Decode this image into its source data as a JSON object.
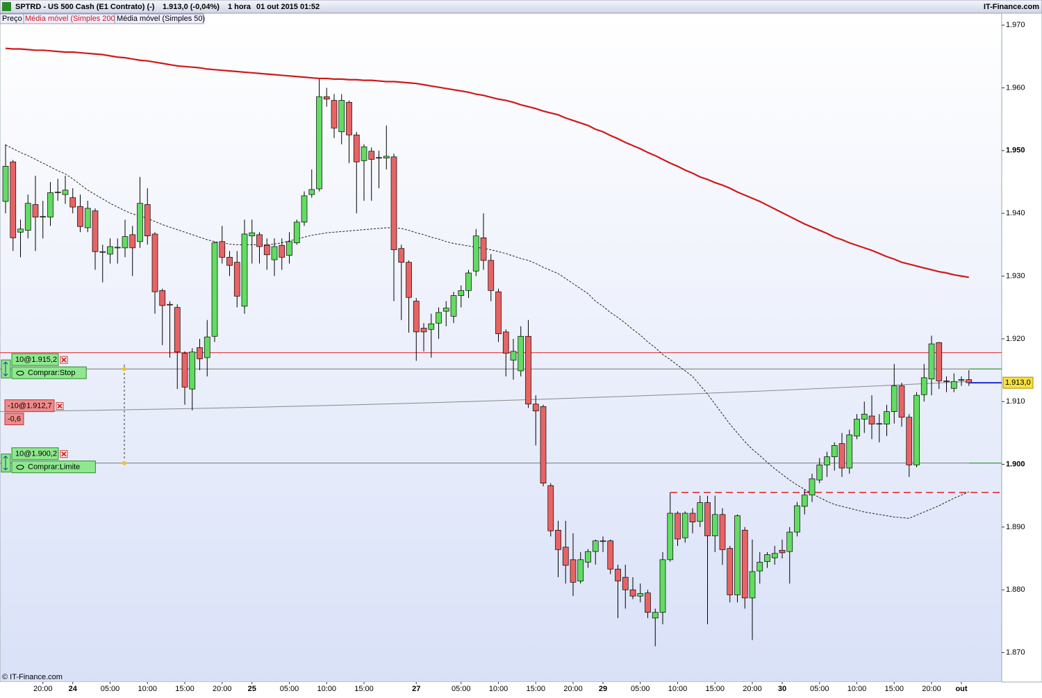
{
  "chart_data": {
    "type": "candlestick",
    "symbol": "SPTRD - US 500 Cash (E1 Contrato) (-)",
    "quote": "1.913,0 (-0,04%)",
    "period": "1 hora",
    "datetime": "01 out 2015 01:52",
    "source": "IT-Finance.com",
    "copyright": "© IT-Finance.com",
    "price_name": "Preço",
    "up_color": "#62dc62",
    "down_color": "#e86464",
    "categories": [
      null,
      null,
      null,
      null,
      null,
      "20:00",
      null,
      null,
      null,
      "24",
      null,
      null,
      null,
      null,
      "05:00",
      null,
      null,
      null,
      null,
      "10:00",
      null,
      null,
      null,
      null,
      "15:00",
      null,
      null,
      null,
      null,
      "20:00",
      null,
      null,
      null,
      "25",
      null,
      null,
      null,
      null,
      "05:00",
      null,
      null,
      null,
      null,
      "10:00",
      null,
      null,
      null,
      null,
      "15:00",
      null,
      null,
      null,
      null,
      null,
      null,
      "27",
      null,
      null,
      null,
      null,
      null,
      "05:00",
      null,
      null,
      null,
      null,
      "10:00",
      null,
      null,
      null,
      null,
      "15:00",
      null,
      null,
      null,
      null,
      "20:00",
      null,
      null,
      null,
      "29",
      null,
      null,
      null,
      null,
      "05:00",
      null,
      null,
      null,
      null,
      "10:00",
      null,
      null,
      null,
      null,
      "15:00",
      null,
      null,
      null,
      null,
      "20:00",
      null,
      null,
      null,
      "30",
      null,
      null,
      null,
      null,
      "05:00",
      null,
      null,
      null,
      null,
      "10:00",
      null,
      null,
      null,
      null,
      "15:00",
      null,
      null,
      null,
      null,
      "20:00",
      null,
      null,
      null,
      "out",
      null
    ],
    "open": [
      1941.9,
      1948.2,
      1937.0,
      1937.3,
      1941.4,
      1939.4,
      1939.4,
      1943.3,
      1943.0,
      1942.5,
      1941.1,
      1937.7,
      1940.4,
      1933.8,
      1933.5,
      1934.5,
      1934.5,
      1936.6,
      1935.5,
      1941.4,
      1936.7,
      1927.7,
      1925.5,
      1925.0,
      1917.7,
      1912.0,
      1918.6,
      1917.0,
      1920.4,
      1935.5,
      1933.0,
      1932.2,
      1925.2,
      1936.4,
      1936.6,
      1934.9,
      1932.6,
      1934.9,
      1933.3,
      1935.3,
      1938.6,
      1943.0,
      1943.9,
      1958.6,
      1958.0,
      1953.0,
      1957.7,
      1952.5,
      1948.4,
      1949.9,
      1948.9,
      1948.8,
      1949.0,
      1934.4,
      1932.2,
      1926.0,
      1921.7,
      1921.5,
      1922.5,
      1924.4,
      1923.6,
      1926.9,
      1927.7,
      1930.8,
      1936.1,
      1932.5,
      1927.5,
      1921.1,
      1916.6,
      1914.9,
      1920.4,
      1909.6,
      1909.2,
      1896.6,
      1889.5,
      1886.8,
      1884.8,
      1881.4,
      1884.4,
      1886.1,
      1887.8,
      1887.8,
      1883.3,
      1882.0,
      1880.0,
      1879.0,
      1879.5,
      1875.5,
      1876.4,
      1884.8,
      1892.2,
      1888.3,
      1892.2,
      1890.9,
      1893.9,
      1888.6,
      1892.0,
      1886.6,
      1879.2,
      1889.5,
      1878.7,
      1883.0,
      1884.5,
      1885.1,
      1886.3,
      1886.1,
      1889.2,
      1893.3,
      1895.1,
      1897.5,
      1899.9,
      1901.2,
      1903.3,
      1899.4,
      1904.5,
      1907.2,
      1907.7,
      1906.4,
      1906.4,
      1908.4,
      1912.5,
      1907.5,
      1899.9,
      1911.1,
      1913.6,
      1919.4,
      1913.3,
      1912.1,
      1913.4,
      1913.5
    ],
    "high": [
      1951.0,
      1948.5,
      1939.0,
      1943.0,
      1946.0,
      1942.0,
      1945.0,
      1945.5,
      1946.0,
      1944.0,
      1943.0,
      1942.0,
      1940.8,
      1935.0,
      1936.0,
      1936.0,
      1939.0,
      1938.0,
      1945.8,
      1944.0,
      1937.0,
      1928.0,
      1926.0,
      1925.5,
      1918.0,
      1918.5,
      1920.0,
      1923.0,
      1935.5,
      1938.0,
      1934.0,
      1934.0,
      1939.0,
      1939.0,
      1937.0,
      1936.0,
      1936.0,
      1936.0,
      1937.0,
      1939.0,
      1943.5,
      1947.0,
      1961.4,
      1960.0,
      1959.0,
      1959.0,
      1958.0,
      1953.0,
      1951.0,
      1950.5,
      1950.0,
      1954.0,
      1949.5,
      1935.0,
      1932.5,
      1926.5,
      1922.5,
      1924.0,
      1925.0,
      1926.0,
      1927.5,
      1928.5,
      1931.0,
      1937.5,
      1940.0,
      1933.5,
      1928.0,
      1921.5,
      1920.0,
      1922.0,
      1923.0,
      1911.0,
      1909.5,
      1897.0,
      1891.0,
      1891.0,
      1889.0,
      1886.0,
      1886.5,
      1888.0,
      1888.5,
      1888.0,
      1884.0,
      1884.0,
      1882.0,
      1881.0,
      1880.0,
      1877.0,
      1886.0,
      1895.5,
      1892.5,
      1892.5,
      1893.0,
      1895.0,
      1895.0,
      1895.0,
      1893.0,
      1887.0,
      1892.0,
      1890.0,
      1888.0,
      1886.0,
      1886.0,
      1887.0,
      1888.0,
      1890.0,
      1894.0,
      1896.0,
      1898.5,
      1901.0,
      1902.0,
      1903.5,
      1905.0,
      1905.5,
      1908.0,
      1910.0,
      1911.0,
      1908.0,
      1909.5,
      1916.0,
      1913.0,
      1908.0,
      1911.5,
      1916.0,
      1920.5,
      1919.5,
      1914.0,
      1914.5,
      1914.0,
      1915.0
    ],
    "low": [
      1940.0,
      1934.0,
      1933.0,
      1936.0,
      1934.0,
      1936.0,
      1938.0,
      1942.0,
      1941.5,
      1940.0,
      1937.0,
      1937.0,
      1931.0,
      1929.0,
      1932.0,
      1932.0,
      1933.0,
      1930.0,
      1934.5,
      1935.0,
      1924.0,
      1919.0,
      1917.0,
      1912.0,
      1909.5,
      1908.6,
      1915.0,
      1914.0,
      1919.5,
      1932.0,
      1930.0,
      1925.0,
      1924.0,
      1932.0,
      1932.0,
      1931.0,
      1930.0,
      1931.0,
      1932.0,
      1935.0,
      1938.0,
      1942.5,
      1943.5,
      1957.0,
      1952.0,
      1951.0,
      1948.0,
      1940.0,
      1942.0,
      1942.0,
      1944.0,
      1947.0,
      1926.0,
      1923.0,
      1921.0,
      1916.5,
      1918.0,
      1917.0,
      1920.0,
      1922.0,
      1922.5,
      1925.0,
      1926.5,
      1930.0,
      1931.0,
      1926.0,
      1919.5,
      1914.0,
      1913.5,
      1914.0,
      1909.0,
      1903.0,
      1896.5,
      1888.5,
      1882.0,
      1881.0,
      1879.0,
      1881.0,
      1883.5,
      1884.0,
      1886.0,
      1882.5,
      1875.5,
      1877.0,
      1878.5,
      1878.0,
      1875.5,
      1871.0,
      1874.5,
      1884.5,
      1887.0,
      1887.5,
      1889.0,
      1890.0,
      1874.5,
      1886.0,
      1884.0,
      1878.0,
      1878.0,
      1877.0,
      1872.0,
      1881.0,
      1883.5,
      1884.0,
      1885.0,
      1881.0,
      1888.5,
      1892.0,
      1894.0,
      1897.0,
      1898.0,
      1899.0,
      1898.0,
      1898.5,
      1904.0,
      1905.0,
      1904.0,
      1903.5,
      1904.5,
      1906.5,
      1906.0,
      1898.0,
      1899.5,
      1910.0,
      1911.0,
      1912.0,
      1911.5,
      1911.5,
      1912.5,
      1912.5
    ],
    "close": [
      1947.5,
      1936.1,
      1937.5,
      1941.6,
      1939.4,
      1939.5,
      1943.3,
      1943.4,
      1943.7,
      1941.0,
      1937.9,
      1940.8,
      1933.9,
      1933.9,
      1934.7,
      1934.6,
      1936.3,
      1934.5,
      1941.6,
      1936.4,
      1927.5,
      1925.3,
      1925.4,
      1917.9,
      1912.3,
      1917.9,
      1916.8,
      1920.3,
      1935.3,
      1933.0,
      1931.7,
      1926.8,
      1936.7,
      1936.9,
      1934.7,
      1933.4,
      1934.7,
      1933.0,
      1935.5,
      1938.6,
      1942.8,
      1943.8,
      1958.6,
      1958.2,
      1953.6,
      1958.0,
      1952.5,
      1948.2,
      1950.6,
      1948.6,
      1948.8,
      1949.1,
      1934.2,
      1932.2,
      1926.6,
      1921.1,
      1921.1,
      1922.4,
      1924.2,
      1924.9,
      1926.9,
      1927.7,
      1930.5,
      1936.4,
      1932.5,
      1927.7,
      1920.8,
      1917.7,
      1918.0,
      1920.4,
      1909.6,
      1908.5,
      1897.0,
      1889.4,
      1886.4,
      1883.9,
      1881.2,
      1884.8,
      1886.1,
      1887.8,
      1887.7,
      1883.3,
      1881.4,
      1880.0,
      1879.0,
      1879.4,
      1876.4,
      1876.4,
      1884.8,
      1892.2,
      1888.1,
      1892.2,
      1890.8,
      1893.9,
      1888.6,
      1892.0,
      1886.4,
      1879.2,
      1891.8,
      1878.7,
      1882.9,
      1884.4,
      1885.6,
      1885.8,
      1885.9,
      1889.2,
      1893.4,
      1895.1,
      1897.7,
      1899.9,
      1901.2,
      1903.0,
      1899.4,
      1904.7,
      1907.2,
      1908.0,
      1906.4,
      1906.5,
      1908.4,
      1912.5,
      1907.5,
      1899.9,
      1911.0,
      1913.8,
      1919.2,
      1913.3,
      1913.2,
      1913.2,
      1913.5,
      1913.0
    ],
    "moving_averages": [
      {
        "name": "Média móvel (Simples 200)",
        "color": "#d01818",
        "style": "solid",
        "values": [
          1966.3,
          1966.2,
          1966.2,
          1966.1,
          1966.0,
          1966.0,
          1965.9,
          1965.8,
          1965.7,
          1965.7,
          1965.6,
          1965.5,
          1965.4,
          1965.3,
          1965.1,
          1964.9,
          1964.8,
          1964.6,
          1964.4,
          1964.3,
          1964.1,
          1963.9,
          1963.7,
          1963.5,
          1963.4,
          1963.3,
          1963.2,
          1963.0,
          1962.9,
          1962.8,
          1962.7,
          1962.6,
          1962.5,
          1962.4,
          1962.3,
          1962.2,
          1962.1,
          1962.0,
          1961.9,
          1961.8,
          1961.7,
          1961.6,
          1961.5,
          1961.5,
          1961.4,
          1961.4,
          1961.3,
          1961.3,
          1961.2,
          1961.2,
          1961.1,
          1961.0,
          1961.0,
          1960.9,
          1960.8,
          1960.7,
          1960.5,
          1960.3,
          1960.1,
          1959.9,
          1959.7,
          1959.5,
          1959.3,
          1959.0,
          1958.8,
          1958.5,
          1958.2,
          1958.0,
          1957.7,
          1957.3,
          1957.0,
          1956.7,
          1956.3,
          1956.0,
          1955.7,
          1955.2,
          1954.8,
          1954.4,
          1954.0,
          1953.4,
          1953.0,
          1952.4,
          1951.9,
          1951.3,
          1950.8,
          1950.3,
          1949.7,
          1949.2,
          1948.6,
          1948.0,
          1947.5,
          1946.9,
          1946.4,
          1945.8,
          1945.4,
          1944.9,
          1944.5,
          1944.0,
          1943.4,
          1942.9,
          1942.4,
          1941.9,
          1941.3,
          1940.7,
          1940.1,
          1939.5,
          1938.9,
          1938.3,
          1937.8,
          1937.3,
          1936.8,
          1936.2,
          1935.8,
          1935.3,
          1934.9,
          1934.5,
          1934.1,
          1933.6,
          1933.1,
          1932.7,
          1932.2,
          1931.9,
          1931.6,
          1931.3,
          1931.0,
          1930.7,
          1930.5,
          1930.2,
          1930.0,
          1929.8
        ]
      },
      {
        "name": "Média móvel (Simples 50)",
        "color": "#222222",
        "style": "dashed",
        "values": [
          1950.9,
          1950.3,
          1949.7,
          1949.2,
          1948.6,
          1948.0,
          1947.4,
          1946.8,
          1946.3,
          1945.5,
          1944.6,
          1943.7,
          1943.0,
          1942.3,
          1941.6,
          1941.0,
          1940.4,
          1939.9,
          1939.6,
          1939.2,
          1938.7,
          1938.2,
          1937.8,
          1937.4,
          1937.0,
          1936.6,
          1936.2,
          1935.8,
          1935.5,
          1935.3,
          1935.1,
          1935.0,
          1935.0,
          1935.0,
          1935.0,
          1935.0,
          1935.1,
          1935.3,
          1935.6,
          1935.9,
          1936.2,
          1936.5,
          1936.7,
          1936.9,
          1937.0,
          1937.1,
          1937.2,
          1937.3,
          1937.4,
          1937.5,
          1937.6,
          1937.7,
          1937.7,
          1937.6,
          1937.3,
          1936.9,
          1936.6,
          1936.2,
          1935.9,
          1935.5,
          1935.2,
          1935.0,
          1934.8,
          1934.6,
          1934.4,
          1934.2,
          1933.9,
          1933.6,
          1933.2,
          1932.8,
          1932.5,
          1932.0,
          1931.4,
          1930.9,
          1930.4,
          1929.6,
          1928.8,
          1928.0,
          1927.2,
          1926.0,
          1925.2,
          1924.2,
          1923.4,
          1922.5,
          1921.5,
          1920.6,
          1919.5,
          1918.6,
          1917.5,
          1916.7,
          1915.8,
          1914.9,
          1914.0,
          1912.6,
          1911.2,
          1909.6,
          1908.0,
          1906.4,
          1905.0,
          1903.6,
          1902.4,
          1901.4,
          1900.3,
          1899.3,
          1898.4,
          1897.5,
          1896.7,
          1896.0,
          1895.3,
          1894.7,
          1894.1,
          1893.6,
          1893.3,
          1893.0,
          1892.7,
          1892.4,
          1892.2,
          1892.0,
          1891.8,
          1891.6,
          1891.5,
          1891.4,
          1891.9,
          1892.4,
          1892.9,
          1893.4,
          1894.0,
          1894.6,
          1895.1,
          1895.6
        ]
      }
    ],
    "levels": [
      {
        "value": 1917.8,
        "color": "#e02020",
        "style": "solid"
      },
      {
        "value": 1895.5,
        "color": "#e02020",
        "style": "dashed"
      }
    ],
    "orders": [
      {
        "label": "10@1.915,2",
        "action": "Comprar:Stop",
        "value": 1915.2
      },
      {
        "label": "10@1.900,2",
        "action": "Comprar:Limite",
        "value": 1900.2
      }
    ],
    "position": {
      "label": "-10@1.912,7",
      "pnl": "-0,6",
      "line": [
        1908.4,
        1913.2
      ]
    },
    "last_price": {
      "value": 1913.0,
      "label": "1.913,0"
    },
    "ylim": [
      1865.3,
      1971.9
    ],
    "yticks": [
      {
        "value": 1870,
        "label": "1.870"
      },
      {
        "value": 1880,
        "label": "1.880"
      },
      {
        "value": 1890,
        "label": "1.890"
      },
      {
        "value": 1900,
        "label": "1.900"
      },
      {
        "value": 1910,
        "label": "1.910"
      },
      {
        "value": 1920,
        "label": "1.920"
      },
      {
        "value": 1930,
        "label": "1.930"
      },
      {
        "value": 1940,
        "label": "1.940"
      },
      {
        "value": 1950,
        "label": "1.950"
      },
      {
        "value": 1960,
        "label": "1.960"
      },
      {
        "value": 1970,
        "label": "1.970"
      }
    ]
  }
}
